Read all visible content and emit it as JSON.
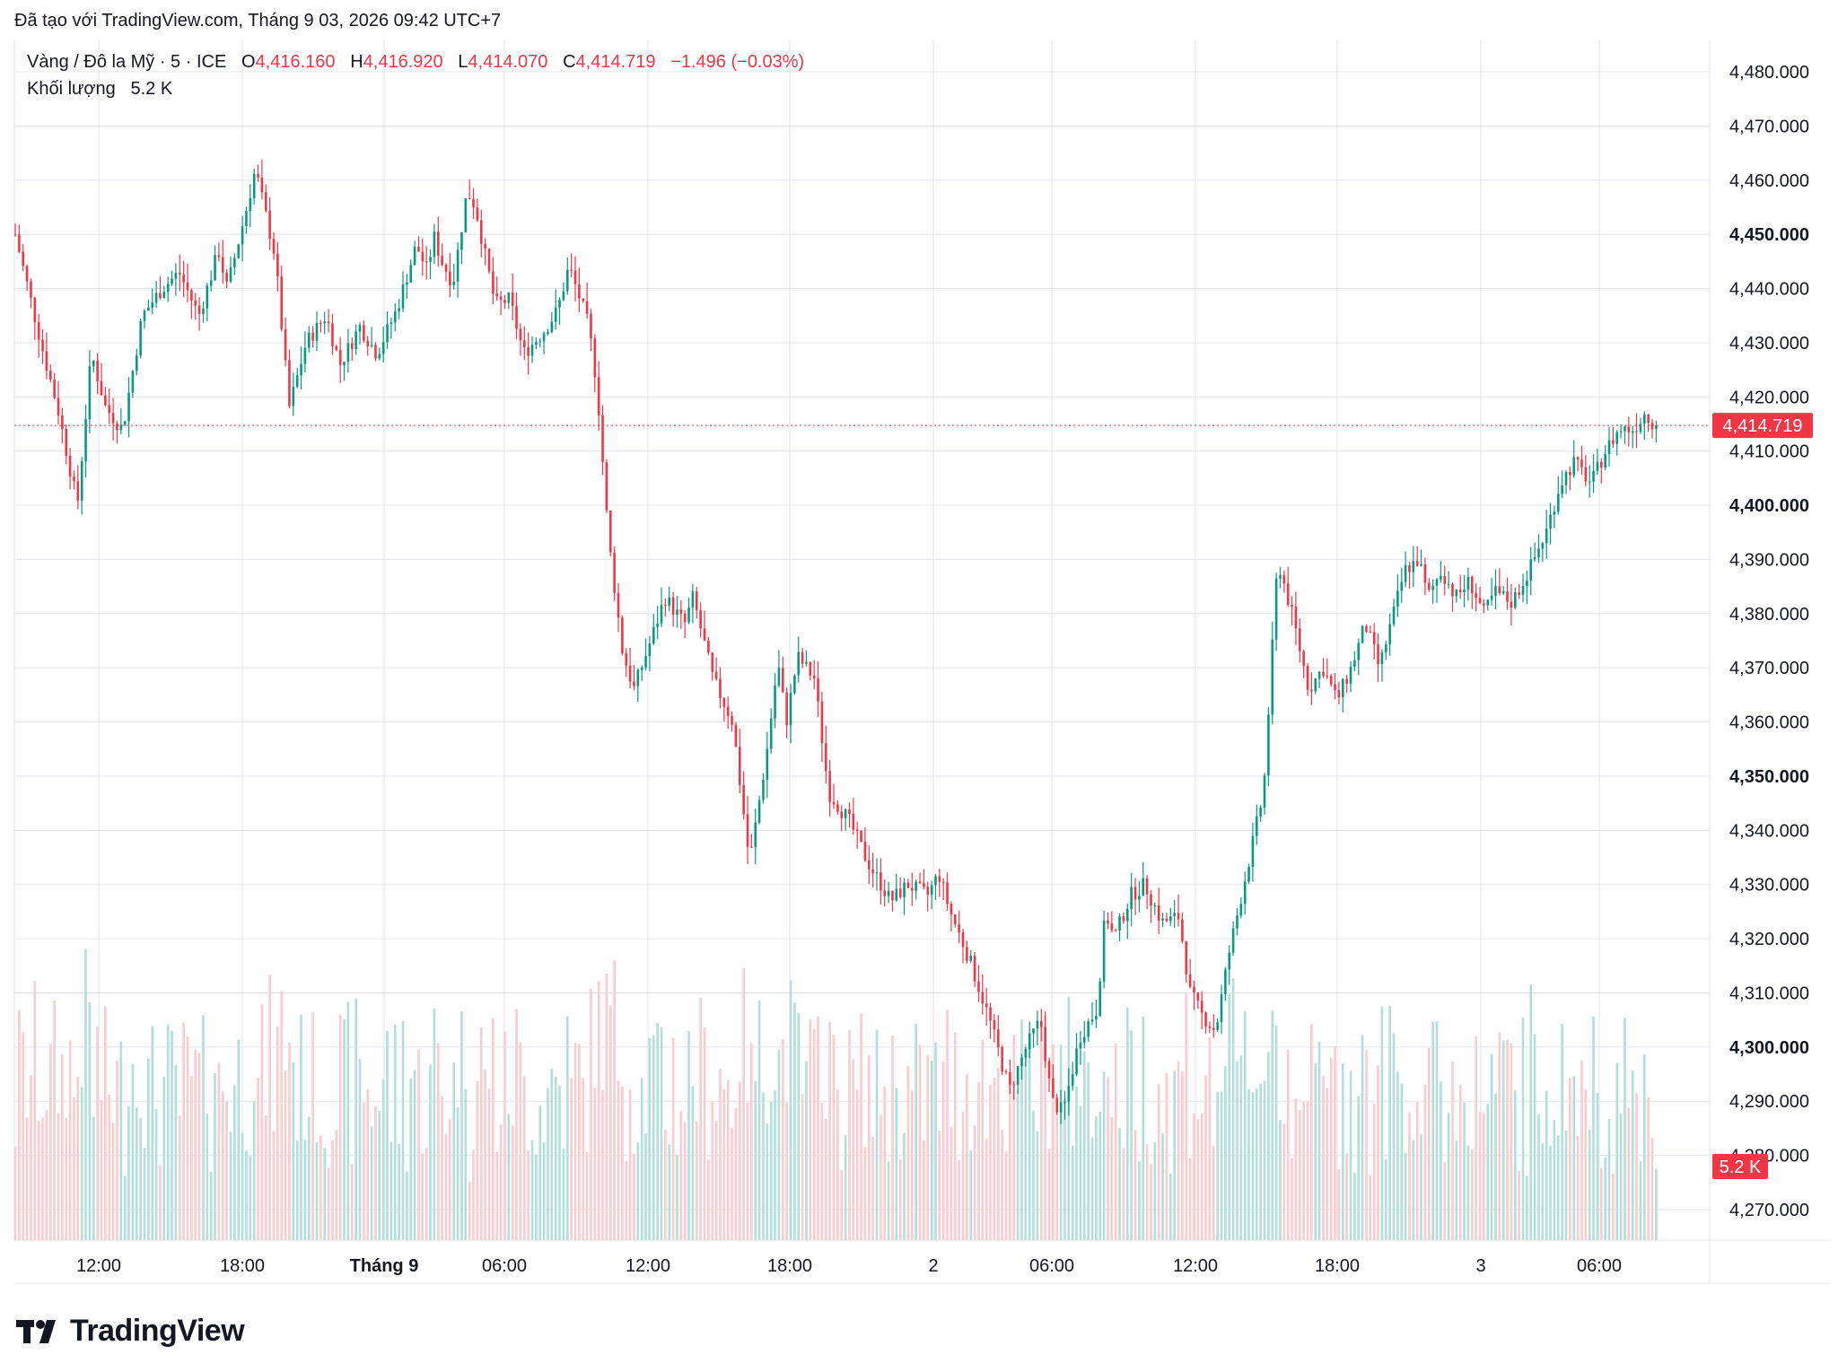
{
  "caption": "Đã tạo với TradingView.com, Tháng 9 03, 2026 09:42 UTC+7",
  "legend": {
    "symbol": "Vàng / Đô la Mỹ · 5 · ICE",
    "o_label": "O",
    "o_value": "4,416.160",
    "h_label": "H",
    "h_value": "4,416.920",
    "l_label": "L",
    "l_value": "4,414.070",
    "c_label": "C",
    "c_value": "4,414.719",
    "change": "−1.496 (−0.03%)",
    "volume_label": "Khối lượng",
    "volume_value": "5.2 K"
  },
  "brand": "TradingView",
  "colors": {
    "up": "#089981",
    "down": "#f23645",
    "up_vol": "#b2dfdb",
    "down_vol": "#fccbcd",
    "grid": "#e0e3eb"
  },
  "chart_data": {
    "type": "line",
    "symbol": "Vàng / Đô la Mỹ",
    "interval": "5",
    "ylim": [
      4262,
      4484
    ],
    "y_ticks": [
      "4,480.000",
      "4,470.000",
      "4,460.000",
      "4,450.000",
      "4,440.000",
      "4,430.000",
      "4,420.000",
      "4,410.000",
      "4,400.000",
      "4,390.000",
      "4,380.000",
      "4,370.000",
      "4,360.000",
      "4,350.000",
      "4,340.000",
      "4,330.000",
      "4,320.000",
      "4,310.000",
      "4,300.000",
      "4,290.000",
      "4,280.000",
      "4,270.000"
    ],
    "y_ticks_bold": [
      "4,450.000",
      "4,400.000",
      "4,350.000",
      "4,300.000"
    ],
    "x_ticks": [
      "12:00",
      "18:00",
      "Tháng 9",
      "06:00",
      "12:00",
      "18:00",
      "2",
      "06:00",
      "12:00",
      "18:00",
      "3",
      "06:00"
    ],
    "x_ticks_bold": [
      "Tháng 9"
    ],
    "last_price": 4414.719,
    "last_price_label": "4,414.719",
    "last_volume_label": "5.2 K",
    "x_times": [
      0,
      1,
      1.5,
      2.2,
      2.7,
      3.2,
      3.8,
      4.5,
      5.2,
      5.8,
      6.5,
      7.2,
      7.5,
      8.2,
      8.5,
      9.2,
      9.7,
      10.3,
      11,
      11.5,
      12.2,
      12.8,
      13.5,
      14.2,
      14.6,
      14.8,
      15.1,
      15.5,
      16,
      16.3,
      16.6,
      17,
      17.5,
      18,
      18.7,
      19.2,
      19.6,
      20,
      20.3,
      20.6,
      21,
      21.5,
      21.9,
      22.5,
      23,
      23.7,
      24,
      24.7,
      25.4,
      26,
      26.6,
      27,
      27.3,
      27.7,
      28.3,
      28.8,
      29.5,
      30.2,
      31,
      31.6,
      32.3,
      32.7,
      33.1,
      33.8,
      34.5,
      35.2,
      35.8,
      36.3,
      36.7,
      37.1,
      37.7,
      38.3,
      38.6,
      38.9,
      39.5,
      40,
      40.6,
      41.2,
      41.6,
      42,
      42.5,
      43,
      43.5,
      44.2,
      44.7,
      45.2,
      45.8,
      46.3,
      46.8,
      47.3,
      47.8,
      48.3,
      48.8,
      49.2,
      49.7,
      50,
      50.5,
      51,
      51.5,
      52,
      52.4,
      53,
      53.6,
      54.2,
      54.7,
      55.2,
      55.8,
      56.3,
      56.8,
      57.3,
      57.7,
      58.1
    ],
    "y_values": [
      4450,
      4428,
      4418,
      4400,
      4428,
      4418,
      4414,
      4435,
      4440,
      4443,
      4435,
      4447,
      4440,
      4455,
      4462,
      4446,
      4418,
      4430,
      4435,
      4426,
      4433,
      4428,
      4436,
      4448,
      4443,
      4450,
      4445,
      4441,
      4458,
      4455,
      4447,
      4437,
      4438,
      4428,
      4432,
      4436,
      4444,
      4438,
      4433,
      4422,
      4394,
      4373,
      4366,
      4375,
      4383,
      4378,
      4383,
      4368,
      4360,
      4334,
      4354,
      4371,
      4360,
      4372,
      4368,
      4347,
      4342,
      4334,
      4327,
      4330,
      4328,
      4332,
      4325,
      4316,
      4305,
      4292,
      4300,
      4305,
      4290,
      4288,
      4302,
      4307,
      4325,
      4320,
      4328,
      4330,
      4323,
      4324,
      4310,
      4306,
      4303,
      4318,
      4330,
      4347,
      4390,
      4380,
      4366,
      4370,
      4364,
      4370,
      4378,
      4370,
      4380,
      4388,
      4390,
      4383,
      4388,
      4383,
      4386,
      4380,
      4384,
      4382,
      4388,
      4395,
      4404,
      4408,
      4404,
      4410,
      4414,
      4414,
      4417,
      4414.7
    ],
    "volume_axis_max": 10000
  }
}
